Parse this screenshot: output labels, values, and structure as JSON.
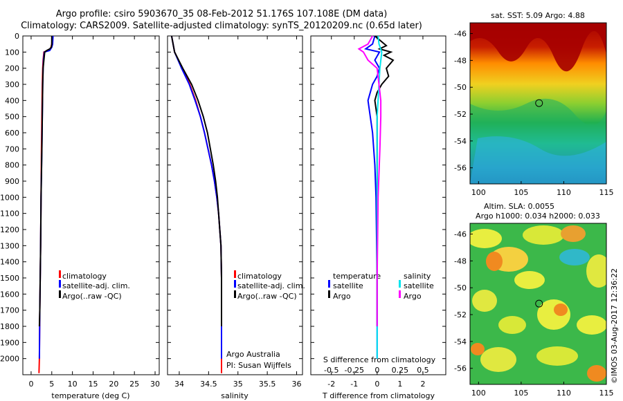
{
  "header": {
    "line1": "Argo profile: csiro 5903670_35 08-Feb-2012 51.176S 107.108E (DM data)",
    "line2": "Climatology: CARS2009. Satellite-adjusted climatology: synTS_20120209.nc (0.65d later)"
  },
  "colors": {
    "climatology": "#ff0000",
    "satellite": "#0000ff",
    "argo": "#000000",
    "salinity_satellite": "#00e5ee",
    "salinity_argo": "#ff00ff"
  },
  "legend": {
    "climatology": "climatology",
    "satellite_clim": "satellite-adj. clim.",
    "argo": "Argo(..raw -QC)"
  },
  "credit": {
    "line1": "Argo Australia",
    "line2": "PI: Susan Wijffels"
  },
  "diff_legend": {
    "temp_header": "temperature",
    "sal_header": "salinity",
    "satellite": "satellite",
    "argo": "Argo"
  },
  "maps": {
    "sst_title": "sat. SST: 5.09 Argo: 4.88",
    "sla_title1": "Altim. SLA: 0.0055",
    "sla_title2": "Argo h1000: 0.034 h2000: 0.033"
  },
  "side_stamp": "©IMOS 03-Aug-2017 12:36:22",
  "chart_data": [
    {
      "type": "line",
      "id": "temperature",
      "xlabel": "temperature (deg C)",
      "ylabel": "",
      "xlim": [
        -2,
        31
      ],
      "ylim": [
        2100,
        0
      ],
      "xticks": [
        "0",
        "5",
        "10",
        "15",
        "20",
        "25",
        "30"
      ],
      "yticks": [
        "0",
        "100",
        "200",
        "300",
        "400",
        "500",
        "600",
        "700",
        "800",
        "900",
        "1000",
        "1100",
        "1200",
        "1300",
        "1400",
        "1500",
        "1600",
        "1700",
        "1800",
        "1900",
        "2000"
      ],
      "series": [
        {
          "name": "climatology",
          "depth": [
            0,
            50,
            80,
            100,
            150,
            200,
            300,
            500,
            700,
            1000,
            1300,
            1500,
            1700,
            2000,
            2090
          ],
          "values": [
            5.1,
            5.0,
            4.7,
            3.1,
            2.9,
            2.8,
            2.7,
            2.6,
            2.5,
            2.4,
            2.3,
            2.2,
            2.1,
            2.0,
            1.9
          ]
        },
        {
          "name": "satellite-adj. clim.",
          "depth": [
            0,
            50,
            70,
            90,
            100,
            150,
            200,
            300,
            500,
            700,
            1000,
            1300,
            1500,
            1700,
            2000
          ],
          "values": [
            5.3,
            5.2,
            5.0,
            4.5,
            3.2,
            3.0,
            2.9,
            2.8,
            2.7,
            2.6,
            2.4,
            2.3,
            2.2,
            2.1,
            2.0
          ]
        },
        {
          "name": "Argo(..raw -QC)",
          "depth": [
            0,
            50,
            70,
            80,
            90,
            100,
            150,
            200,
            300,
            500,
            700,
            1000,
            1300,
            1500,
            1700,
            1800
          ],
          "values": [
            5.0,
            5.0,
            4.9,
            4.5,
            3.8,
            3.3,
            3.1,
            2.9,
            2.8,
            2.7,
            2.6,
            2.4,
            2.3,
            2.2,
            2.1,
            2.0
          ]
        }
      ]
    },
    {
      "type": "line",
      "id": "salinity",
      "xlabel": "salinity",
      "ylabel": "",
      "xlim": [
        33.8,
        36.1
      ],
      "ylim": [
        2100,
        0
      ],
      "xticks": [
        "34",
        "34.5",
        "35",
        "35.5",
        "36"
      ],
      "series": [
        {
          "name": "climatology",
          "depth": [
            0,
            100,
            200,
            300,
            400,
            500,
            600,
            700,
            800,
            900,
            1000,
            1100,
            1200,
            1300,
            1500,
            1800,
            2000,
            2090
          ],
          "values": [
            33.87,
            33.92,
            34.05,
            34.18,
            34.28,
            34.36,
            34.43,
            34.49,
            34.55,
            34.6,
            34.64,
            34.67,
            34.69,
            34.71,
            34.72,
            34.72,
            34.72,
            34.72
          ]
        },
        {
          "name": "satellite-adj. clim.",
          "depth": [
            0,
            100,
            200,
            300,
            400,
            500,
            600,
            700,
            800,
            900,
            1000,
            1100,
            1200,
            1300,
            1500,
            1800,
            2000
          ],
          "values": [
            33.87,
            33.92,
            34.04,
            34.17,
            34.27,
            34.36,
            34.43,
            34.49,
            34.55,
            34.6,
            34.64,
            34.67,
            34.69,
            34.71,
            34.72,
            34.72,
            34.72
          ]
        },
        {
          "name": "Argo(..raw -QC)",
          "depth": [
            0,
            100,
            200,
            300,
            400,
            500,
            600,
            700,
            800,
            900,
            1000,
            1100,
            1200,
            1300,
            1500,
            1700,
            1800
          ],
          "values": [
            33.87,
            33.92,
            34.06,
            34.21,
            34.32,
            34.41,
            34.48,
            34.53,
            34.58,
            34.62,
            34.65,
            34.67,
            34.69,
            34.71,
            34.72,
            34.72,
            34.72
          ]
        }
      ]
    },
    {
      "type": "line",
      "id": "difference",
      "xlabel": "T difference from climatology",
      "xlabel_top": "S difference from climatology",
      "xlim": [
        -2.9,
        3.0
      ],
      "ylim": [
        2100,
        0
      ],
      "xticks": [
        "-2",
        "-1",
        "0",
        "1",
        "2"
      ],
      "xticks_top": [
        "-0.5",
        "-0.25",
        "0",
        "0.25",
        "0.5"
      ],
      "series": [
        {
          "name": "temperature satellite",
          "depth": [
            0,
            50,
            80,
            100,
            150,
            200,
            250,
            300,
            350,
            400,
            500,
            600,
            800,
            1000,
            1500,
            2000
          ],
          "values": [
            -0.1,
            -0.2,
            -0.5,
            0.1,
            -0.1,
            0.1,
            0.0,
            -0.2,
            -0.3,
            -0.4,
            -0.3,
            -0.2,
            -0.1,
            -0.05,
            0.0,
            0.0
          ]
        },
        {
          "name": "temperature Argo",
          "depth": [
            0,
            60,
            80,
            100,
            120,
            150,
            200,
            250,
            300,
            350,
            400,
            500,
            600,
            800,
            1000,
            1500,
            1800
          ],
          "values": [
            -0.1,
            0.4,
            0.1,
            0.6,
            0.3,
            0.7,
            0.4,
            0.5,
            0.2,
            0.0,
            -0.1,
            0.0,
            0.0,
            0.0,
            0.0,
            0.0,
            0.0
          ]
        },
        {
          "name": "salinity satellite",
          "depth": [
            0,
            50,
            100,
            200,
            300,
            400,
            500,
            700,
            1000,
            1500,
            2000
          ],
          "values": [
            0.01,
            0.02,
            0.05,
            0.03,
            0.02,
            0.01,
            0.0,
            0.0,
            0.0,
            0.0,
            0.0
          ]
        },
        {
          "name": "salinity Argo",
          "depth": [
            0,
            50,
            80,
            100,
            150,
            200,
            300,
            400,
            500,
            700,
            1000,
            1500,
            1800
          ],
          "values": [
            -0.05,
            -0.1,
            -0.2,
            -0.15,
            -0.1,
            0.0,
            0.02,
            0.04,
            0.04,
            0.03,
            0.01,
            0.0,
            0.0
          ]
        }
      ]
    },
    {
      "type": "heatmap",
      "id": "sst-map",
      "title": "sat. SST: 5.09 Argo: 4.88",
      "xlim": [
        99,
        115
      ],
      "ylim": [
        -57.2,
        -45.2
      ],
      "xticks": [
        "100",
        "105",
        "110",
        "115"
      ],
      "yticks": [
        "-46",
        "-48",
        "-50",
        "-52",
        "-54",
        "-56"
      ],
      "marker": {
        "lon": 107.1,
        "lat": -51.18
      }
    },
    {
      "type": "heatmap",
      "id": "sla-map",
      "title": "Altim. SLA: 0.0055",
      "xlim": [
        99,
        115
      ],
      "ylim": [
        -57.2,
        -45.2
      ],
      "xticks": [
        "100",
        "105",
        "110",
        "115"
      ],
      "yticks": [
        "-46",
        "-48",
        "-50",
        "-52",
        "-54",
        "-56"
      ],
      "marker": {
        "lon": 107.1,
        "lat": -51.18
      }
    }
  ]
}
